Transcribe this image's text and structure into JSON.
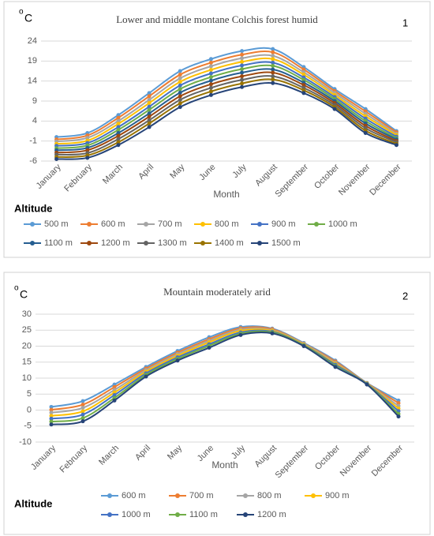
{
  "chart_data": [
    {
      "type": "line",
      "title": "Lower and middle montane Colchis forest humid",
      "panel_label": "1",
      "ylabel_degree": "o",
      "ylabel": "C",
      "xlabel": "Month",
      "legend_title": "Altitude",
      "categories": [
        "January",
        "February",
        "March",
        "April",
        "May",
        "June",
        "July",
        "August",
        "September",
        "October",
        "November",
        "December"
      ],
      "ylim": [
        -6,
        24
      ],
      "yticks": [
        -6,
        -1,
        4,
        9,
        14,
        19,
        24
      ],
      "grid": true,
      "series": [
        {
          "name": "500 m",
          "color": "#5B9BD5",
          "values": [
            0,
            1,
            5.5,
            11,
            16.5,
            19.5,
            21.5,
            22,
            17.5,
            12,
            7,
            1.5
          ]
        },
        {
          "name": "600 m",
          "color": "#ED7D31",
          "values": [
            -0.6,
            0.4,
            4.8,
            10.2,
            15.6,
            18.6,
            20.6,
            21.2,
            16.9,
            11.5,
            6.4,
            1.2
          ]
        },
        {
          "name": "700 m",
          "color": "#A5A5A5",
          "values": [
            -1.1,
            -0.2,
            4.0,
            9.3,
            14.7,
            17.7,
            19.7,
            20.3,
            16.2,
            11,
            5.8,
            0.8
          ]
        },
        {
          "name": "800 m",
          "color": "#FFC000",
          "values": [
            -1.7,
            -0.9,
            3.3,
            8.5,
            13.8,
            16.8,
            18.8,
            19.5,
            15.6,
            10.5,
            5.2,
            0.5
          ]
        },
        {
          "name": "900 m",
          "color": "#4472C4",
          "values": [
            -2.2,
            -1.5,
            2.5,
            7.6,
            12.9,
            15.9,
            17.9,
            18.6,
            14.9,
            10,
            4.6,
            0.1
          ]
        },
        {
          "name": "1000 m",
          "color": "#70AD47",
          "values": [
            -2.8,
            -2.1,
            1.8,
            6.8,
            12,
            15,
            17,
            17.8,
            14.3,
            9.5,
            4,
            -0.3
          ]
        },
        {
          "name": "1100 m",
          "color": "#255E91",
          "values": [
            -3.3,
            -2.7,
            1,
            5.9,
            11.1,
            14.1,
            16.1,
            16.9,
            13.6,
            9,
            3.4,
            -0.6
          ]
        },
        {
          "name": "1200 m",
          "color": "#9E480E",
          "values": [
            -3.9,
            -3.3,
            0.3,
            5.1,
            10.2,
            13.2,
            15.2,
            16.1,
            13,
            8.5,
            2.8,
            -1
          ]
        },
        {
          "name": "1300 m",
          "color": "#636363",
          "values": [
            -4.4,
            -4,
            -0.5,
            4.2,
            9.3,
            12.3,
            14.3,
            15.2,
            12.3,
            8,
            2.2,
            -1.3
          ]
        },
        {
          "name": "1400 m",
          "color": "#997300",
          "values": [
            -5,
            -4.6,
            -1.3,
            3.4,
            8.4,
            11.4,
            13.4,
            14.4,
            11.7,
            7.5,
            1.6,
            -1.7
          ]
        },
        {
          "name": "1500 m",
          "color": "#264478",
          "values": [
            -5.5,
            -5.2,
            -2,
            2.5,
            7.5,
            10.5,
            12.5,
            13.5,
            11,
            7,
            1,
            -2
          ]
        }
      ]
    },
    {
      "type": "line",
      "title": "Mountain moderately arid",
      "panel_label": "2",
      "ylabel_degree": "o",
      "ylabel": "C",
      "xlabel": "Month",
      "legend_title": "Altitude",
      "categories": [
        "January",
        "February",
        "March",
        "April",
        "May",
        "June",
        "July",
        "August",
        "September",
        "October",
        "November",
        "December"
      ],
      "ylim": [
        -10,
        30
      ],
      "yticks": [
        -10,
        -5,
        0,
        5,
        10,
        15,
        20,
        25,
        30
      ],
      "grid": true,
      "series": [
        {
          "name": "600 m",
          "color": "#5B9BD5",
          "values": [
            1,
            2.8,
            8,
            13.5,
            18.5,
            22.8,
            26,
            25.5,
            21,
            15.5,
            8.5,
            3
          ]
        },
        {
          "name": "700 m",
          "color": "#ED7D31",
          "values": [
            0.1,
            1.7,
            7.2,
            13,
            18,
            22.2,
            25.6,
            25.3,
            20.8,
            15.2,
            8.4,
            2.2
          ]
        },
        {
          "name": "800 m",
          "color": "#A5A5A5",
          "values": [
            -0.8,
            0.7,
            6.3,
            12.5,
            17.5,
            21.7,
            25.2,
            25,
            20.7,
            14.8,
            8.3,
            1.3
          ]
        },
        {
          "name": "900 m",
          "color": "#FFC000",
          "values": [
            -1.8,
            -0.4,
            5.5,
            12,
            17,
            21.2,
            24.8,
            24.8,
            20.5,
            14.5,
            8.3,
            0.5
          ]
        },
        {
          "name": "1000 m",
          "color": "#4472C4",
          "values": [
            -2.7,
            -1.4,
            4.7,
            11.5,
            16.5,
            20.6,
            24.3,
            24.5,
            20.3,
            14.2,
            8.2,
            -0.3
          ]
        },
        {
          "name": "1100 m",
          "color": "#70AD47",
          "values": [
            -3.6,
            -2.5,
            3.8,
            11,
            16,
            20.1,
            23.9,
            24.3,
            20.2,
            13.8,
            8.1,
            -1.2
          ]
        },
        {
          "name": "1200 m",
          "color": "#264478",
          "values": [
            -4.5,
            -3.5,
            3,
            10.5,
            15.5,
            19.5,
            23.5,
            24,
            20,
            13.5,
            8,
            -2
          ]
        }
      ]
    }
  ]
}
